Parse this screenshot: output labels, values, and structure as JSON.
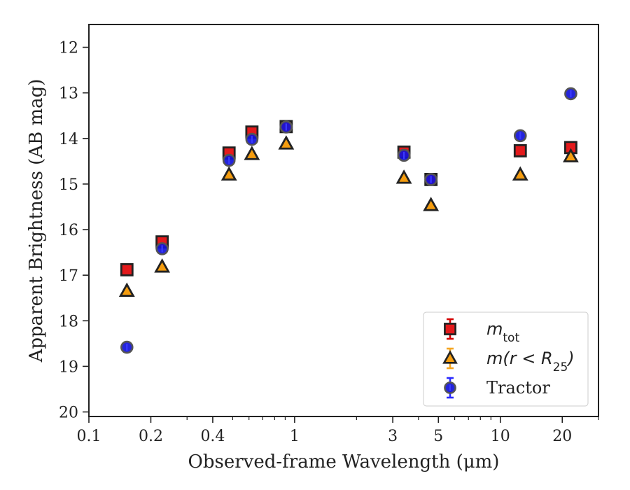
{
  "chart_data": {
    "type": "scatter",
    "xscale": "log",
    "yinverted": true,
    "xlim": [
      0.1,
      30
    ],
    "ylim": [
      11.5,
      20.1
    ],
    "xlabel": "Observed-frame Wavelength (μm)",
    "ylabel": "Apparent Brightness (AB mag)",
    "xticks": [
      {
        "value": 0.1,
        "label": "0.1"
      },
      {
        "value": 0.2,
        "label": "0.2"
      },
      {
        "value": 0.4,
        "label": "0.4"
      },
      {
        "value": 1,
        "label": "1"
      },
      {
        "value": 3,
        "label": "3"
      },
      {
        "value": 5,
        "label": "5"
      },
      {
        "value": 10,
        "label": "10"
      },
      {
        "value": 20,
        "label": "20"
      }
    ],
    "xminor": [
      0.3,
      0.5,
      0.6,
      0.7,
      0.8,
      0.9,
      2,
      4,
      6,
      7,
      8,
      9,
      30
    ],
    "yticks": [
      {
        "value": 12,
        "label": "12"
      },
      {
        "value": 13,
        "label": "13"
      },
      {
        "value": 14,
        "label": "14"
      },
      {
        "value": 15,
        "label": "15"
      },
      {
        "value": 16,
        "label": "16"
      },
      {
        "value": 17,
        "label": "17"
      },
      {
        "value": 18,
        "label": "18"
      },
      {
        "value": 19,
        "label": "19"
      },
      {
        "value": 20,
        "label": "20"
      }
    ],
    "legend_position": "lower-right",
    "series": [
      {
        "key": "mtot",
        "marker": "square",
        "color": "#e41a1c",
        "errcolor": "#d40000",
        "points": [
          {
            "x": 0.153,
            "y": 16.88
          },
          {
            "x": 0.227,
            "y": 16.27
          },
          {
            "x": 0.48,
            "y": 14.32
          },
          {
            "x": 0.62,
            "y": 13.86
          },
          {
            "x": 0.91,
            "y": 13.74
          },
          {
            "x": 3.4,
            "y": 14.3
          },
          {
            "x": 4.6,
            "y": 14.9
          },
          {
            "x": 12.5,
            "y": 14.27
          },
          {
            "x": 22.0,
            "y": 14.2
          }
        ]
      },
      {
        "key": "mr25",
        "marker": "triangle",
        "color": "#f59d0f",
        "errcolor": "#f5a623",
        "points": [
          {
            "x": 0.153,
            "y": 17.35
          },
          {
            "x": 0.227,
            "y": 16.82
          },
          {
            "x": 0.48,
            "y": 14.8
          },
          {
            "x": 0.62,
            "y": 14.35
          },
          {
            "x": 0.91,
            "y": 14.12
          },
          {
            "x": 3.4,
            "y": 14.87
          },
          {
            "x": 4.6,
            "y": 15.47
          },
          {
            "x": 12.5,
            "y": 14.8
          },
          {
            "x": 22.0,
            "y": 14.4
          }
        ]
      },
      {
        "key": "tractor",
        "marker": "circle",
        "color": "#1010e0",
        "errcolor": "#2a2aff",
        "points": [
          {
            "x": 0.153,
            "y": 18.58
          },
          {
            "x": 0.227,
            "y": 16.42
          },
          {
            "x": 0.48,
            "y": 14.48
          },
          {
            "x": 0.62,
            "y": 14.02
          },
          {
            "x": 0.91,
            "y": 13.75
          },
          {
            "x": 3.4,
            "y": 14.37
          },
          {
            "x": 4.6,
            "y": 14.9
          },
          {
            "x": 12.5,
            "y": 13.94
          },
          {
            "x": 22.0,
            "y": 13.02
          }
        ]
      }
    ],
    "legend": {
      "mtot": {
        "main": "m",
        "sub": "tot"
      },
      "mr25": {
        "pre": "m(r < R",
        "sub": "25",
        "post": ")"
      },
      "tractor": {
        "text": "Tractor"
      }
    }
  }
}
